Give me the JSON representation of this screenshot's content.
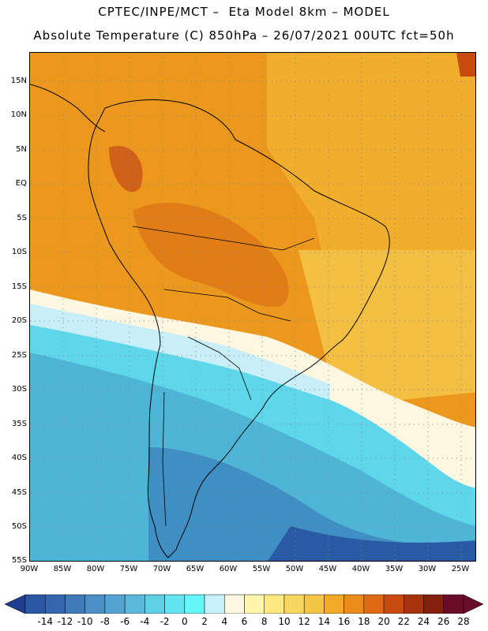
{
  "title_line1": "CPTEC/INPE/MCT –  Eta Model 8km – MODEL",
  "title_line2": "Absolute Temperature (C) 850hPa – 26/07/2021 00UTC fct=50h",
  "lat_labels": [
    "15N",
    "10N",
    "5N",
    "EQ",
    "5S",
    "10S",
    "15S",
    "20S",
    "25S",
    "30S",
    "35S",
    "40S",
    "45S",
    "50S",
    "55S"
  ],
  "lon_labels": [
    "90W",
    "85W",
    "80W",
    "75W",
    "70W",
    "65W",
    "60W",
    "55W",
    "50W",
    "45W",
    "40W",
    "35W",
    "30W",
    "25W"
  ],
  "colorbar": {
    "ticks": [
      "-14",
      "-12",
      "-10",
      "-8",
      "-6",
      "-4",
      "-2",
      "0",
      "2",
      "4",
      "6",
      "8",
      "10",
      "12",
      "14",
      "16",
      "18",
      "20",
      "22",
      "24",
      "26",
      "28"
    ],
    "colors": [
      "#1f3c8f",
      "#2b57a3",
      "#3566ad",
      "#3f7bb9",
      "#4a90c6",
      "#54a3d3",
      "#5cb7dd",
      "#5fcfe6",
      "#62e3ef",
      "#66f5fa",
      "#c9f1fb",
      "#fdf7e0",
      "#fef6a8",
      "#fde882",
      "#f8d761",
      "#f4c546",
      "#f2a927",
      "#ea8b1a",
      "#e06a14",
      "#c94a0e",
      "#a7330c",
      "#85200c",
      "#6a0d2a",
      "#4a3690"
    ]
  },
  "colors": {
    "warm": "#ec981d",
    "warmer": "#e07d17",
    "hot": "#d06018",
    "yellow": "#f4c043",
    "cold": "#4fb5d6",
    "colder": "#3f8fc4",
    "deep": "#2a5aa3",
    "cyan": "#5fd7ea",
    "pale": "#c8eef8",
    "cream": "#fdf6e0"
  }
}
